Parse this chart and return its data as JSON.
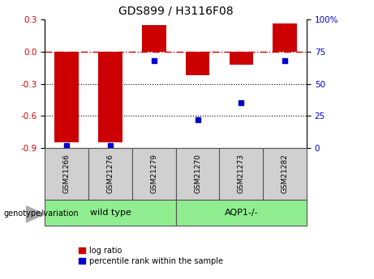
{
  "title": "GDS899 / H3116F08",
  "samples": [
    "GSM21266",
    "GSM21276",
    "GSM21279",
    "GSM21270",
    "GSM21273",
    "GSM21282"
  ],
  "log_ratios": [
    -0.85,
    -0.85,
    0.25,
    -0.22,
    -0.12,
    0.26
  ],
  "percentile_ranks": [
    2,
    2,
    68,
    22,
    35,
    68
  ],
  "groups": [
    "wild type",
    "wild type",
    "wild type",
    "AQP1-/-",
    "AQP1-/-",
    "AQP1-/-"
  ],
  "wild_type_color": "#90EE90",
  "aqp1_color": "#90EE90",
  "bar_color": "#CC0000",
  "dot_color": "#0000CC",
  "sample_box_color": "#D0D0D0",
  "ylim_left": [
    -0.9,
    0.3
  ],
  "ylim_right": [
    0,
    100
  ],
  "left_ticks": [
    0.3,
    0.0,
    -0.3,
    -0.6,
    -0.9
  ],
  "right_ticks": [
    100,
    75,
    50,
    25,
    0
  ],
  "dotted_lines": [
    -0.3,
    -0.6
  ],
  "legend_log_ratio_label": "log ratio",
  "legend_percentile_label": "percentile rank within the sample",
  "genotype_label": "genotype/variation",
  "bar_width": 0.55
}
